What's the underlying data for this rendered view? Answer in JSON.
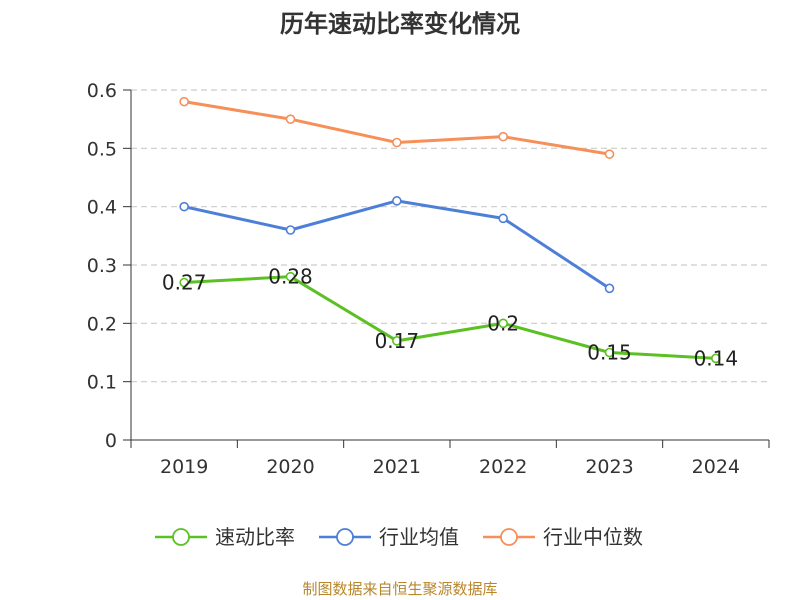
{
  "chart_data": {
    "type": "line",
    "title": "历年速动比率变化情况",
    "categories": [
      "2019",
      "2020",
      "2021",
      "2022",
      "2023",
      "2024"
    ],
    "ylim": [
      0,
      0.6
    ],
    "yticks": [
      "0",
      "0.1",
      "0.2",
      "0.3",
      "0.4",
      "0.5",
      "0.6"
    ],
    "grid": "horizontal dashed",
    "legend_position": "bottom",
    "series": [
      {
        "name": "速动比率",
        "color": "#5bc122",
        "values": [
          0.27,
          0.28,
          0.17,
          0.2,
          0.15,
          0.14
        ],
        "data_labels": [
          "0.27",
          "0.28",
          "0.17",
          "0.2",
          "0.15",
          "0.14"
        ]
      },
      {
        "name": "行业均值",
        "color": "#4e7fd8",
        "values": [
          0.4,
          0.36,
          0.41,
          0.38,
          0.26,
          null
        ]
      },
      {
        "name": "行业中位数",
        "color": "#f68f58",
        "values": [
          0.58,
          0.55,
          0.51,
          0.52,
          0.49,
          null
        ]
      }
    ]
  },
  "source_note": "制图数据来自恒生聚源数据库"
}
